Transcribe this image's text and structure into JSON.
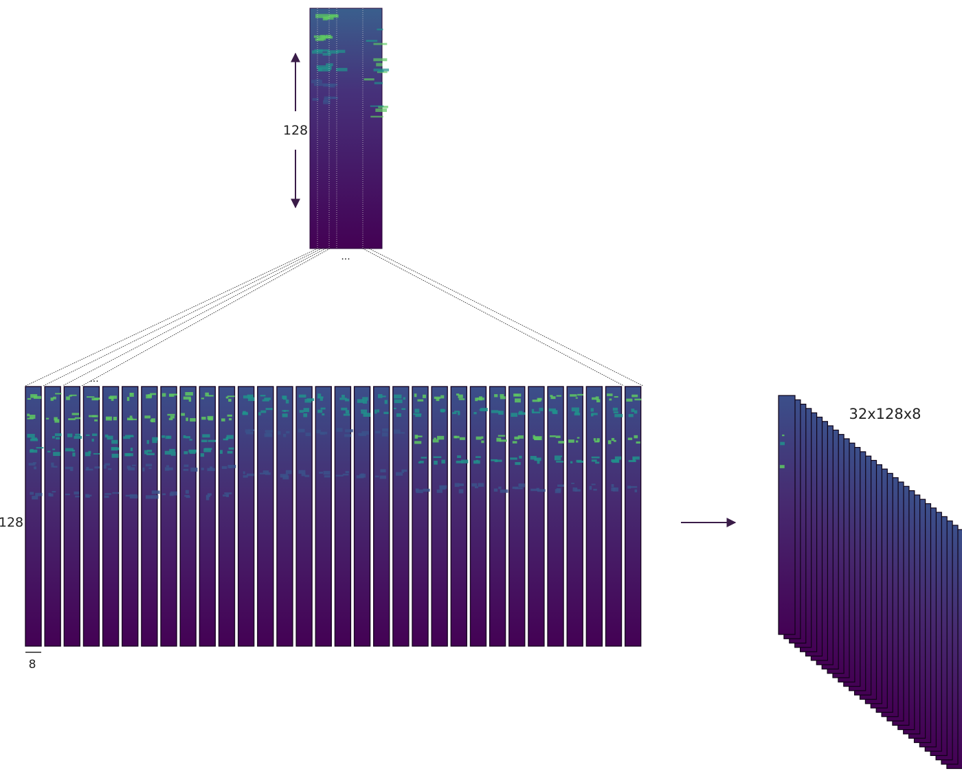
{
  "labels": {
    "top_height": "128",
    "left_height": "128",
    "frame_width": "8",
    "output_shape": "32x128x8",
    "ellipsis": "..."
  },
  "frames": {
    "count": 32
  },
  "colors": {
    "background": "#440154",
    "mid": "#3b528b",
    "teal": "#21918c",
    "green": "#5ec962",
    "arrow": "#3a1c48",
    "line": "#111111"
  },
  "icons": {
    "arrow": "right-arrow-icon",
    "vertical_arrow": "double-arrow-icon"
  }
}
